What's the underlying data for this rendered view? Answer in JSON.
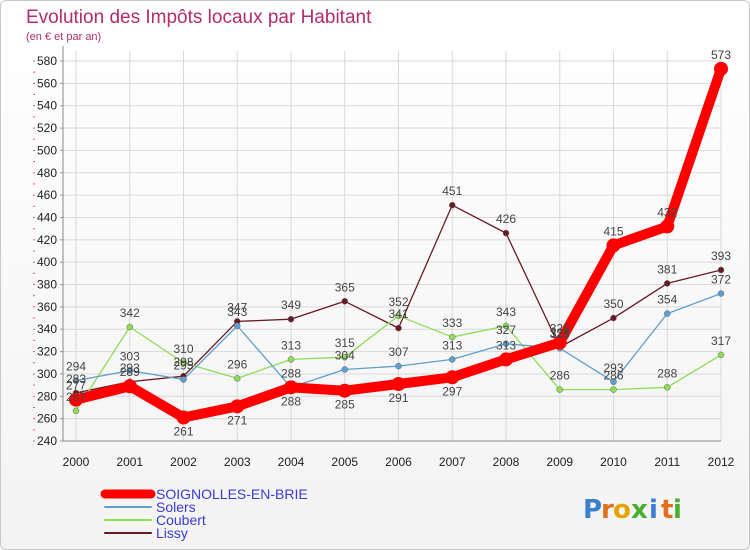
{
  "chart_data": {
    "type": "line",
    "title": "Evolution des Impôts locaux par Habitant",
    "subtitle": "(en € et par an)",
    "xlabel": "",
    "ylabel": "",
    "categories": [
      "2000",
      "2001",
      "2002",
      "2003",
      "2004",
      "2005",
      "2006",
      "2007",
      "2008",
      "2009",
      "2010",
      "2011",
      "2012"
    ],
    "ylim": [
      240,
      580
    ],
    "ytick_step": 20,
    "grid": true,
    "legend": "bottom-left",
    "series": [
      {
        "name": "SOIGNOLLES-EN-BRIE",
        "color": "#ff0000",
        "values": [
          277,
          289,
          261,
          271,
          288,
          285,
          291,
          297,
          313,
          328,
          415,
          432,
          573
        ],
        "labels": [
          "277",
          "289",
          "261",
          "271",
          "288",
          "285",
          "291",
          "297",
          "313",
          "328",
          "415",
          "432",
          "573"
        ]
      },
      {
        "name": "Solers",
        "color": "#5e9fd0",
        "values": [
          294,
          303,
          295,
          343,
          288,
          304,
          307,
          313,
          327,
          323,
          293,
          354,
          372
        ],
        "labels": [
          "294",
          "303",
          "295",
          "343",
          "288",
          "304",
          "307",
          "313",
          "327",
          "323",
          "293",
          "354",
          "372"
        ]
      },
      {
        "name": "Coubert",
        "color": "#8fdc58",
        "values": [
          267,
          342,
          310,
          296,
          313,
          315,
          352,
          333,
          343,
          286,
          286,
          288,
          317
        ],
        "labels": [
          "267",
          "342",
          "310",
          "296",
          "313",
          "315",
          "352",
          "333",
          "343",
          "286",
          "286",
          "288",
          "317"
        ]
      },
      {
        "name": "Lissy",
        "color": "#6a1a24",
        "values": [
          283,
          293,
          298,
          347,
          349,
          365,
          341,
          451,
          426,
          324,
          350,
          381,
          393
        ],
        "labels": [
          "283",
          "293",
          "298",
          "347",
          "349",
          "365",
          "341",
          "451",
          "426",
          "324",
          "350",
          "381",
          "393"
        ]
      }
    ]
  },
  "branding": {
    "logo_letters": [
      "P",
      "r",
      "o",
      "x",
      "i",
      "t",
      "i"
    ],
    "logo_colors": [
      "#3a7fd0",
      "#e0701e",
      "#e5a300",
      "#48b030",
      "#3a7fd0",
      "#e0701e",
      "#48b030"
    ]
  }
}
